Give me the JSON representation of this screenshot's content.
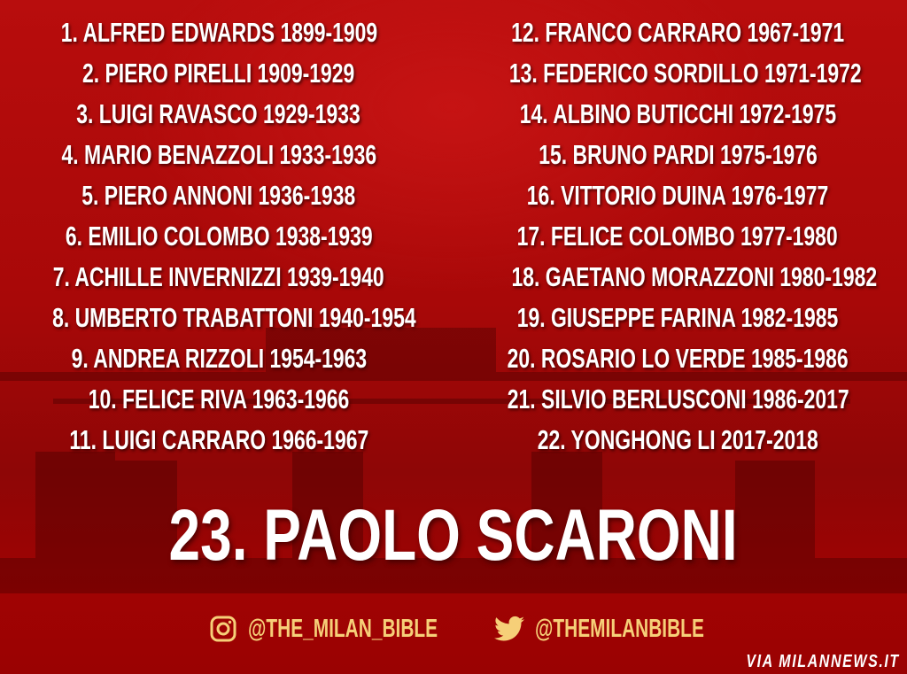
{
  "presidents_left": [
    "1. ALFRED EDWARDS 1899-1909",
    "2. PIERO PIRELLI 1909-1929",
    "3. LUIGI RAVASCO 1929-1933",
    "4. MARIO BENAZZOLI 1933-1936",
    "5. PIERO ANNONI 1936-1938",
    "6. EMILIO COLOMBO 1938-1939",
    "7. ACHILLE INVERNIZZI 1939-1940",
    "8. UMBERTO TRABATTONI 1940-1954",
    "9. ANDREA RIZZOLI 1954-1963",
    "10. FELICE RIVA 1963-1966",
    "11. LUIGI CARRARO 1966-1967"
  ],
  "presidents_right": [
    "12. FRANCO CARRARO 1967-1971",
    "13. FEDERICO SORDILLO 1971-1972",
    "14. ALBINO BUTICCHI 1972-1975",
    "15. BRUNO PARDI 1975-1976",
    "16. VITTORIO DUINA 1976-1977",
    "17. FELICE COLOMBO 1977-1980",
    "18. GAETANO MORAZZONI 1980-1982",
    "19. GIUSEPPE FARINA 1982-1985",
    "20. ROSARIO LO VERDE 1985-1986",
    "21. SILVIO BERLUSCONI 1986-2017",
    "22. YONGHONG LI 2017-2018"
  ],
  "headline": "23. PAOLO SCARONI",
  "social": {
    "instagram": {
      "icon": "instagram-icon",
      "handle": "@THE_MILAN_BIBLE"
    },
    "twitter": {
      "icon": "twitter-icon",
      "handle": "@THEMILANBIBLE"
    }
  },
  "source": "VIA MILANNEWS.IT",
  "colors": {
    "background": "#a80808",
    "text": "#ffffff",
    "social": "#f6cf78"
  }
}
